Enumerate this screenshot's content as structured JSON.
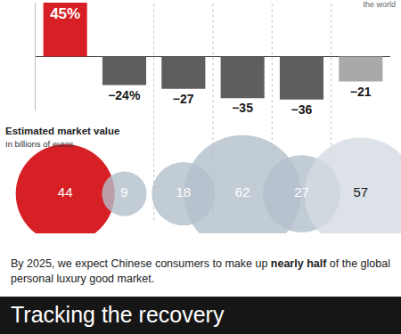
{
  "chart_data": [
    {
      "type": "bar",
      "categories": [
        null,
        null,
        null,
        null,
        null,
        null
      ],
      "values": [
        45,
        -24,
        -27,
        -35,
        -36,
        -21
      ],
      "value_labels": [
        "45%",
        "−24%",
        "−27",
        "−35",
        "−36",
        "−21"
      ],
      "colors": [
        "#d71f26",
        "#5e5e5e",
        "#5e5e5e",
        "#5e5e5e",
        "#5e5e5e",
        "#a9a9a9"
      ],
      "ylim": [
        -45,
        45
      ],
      "data_labels": true,
      "tick_labels": false
    },
    {
      "type": "bubble",
      "title": "Estimated market value",
      "subtitle": "In billions of euros",
      "categories": [
        null,
        null,
        null,
        null,
        null,
        null
      ],
      "values": [
        44,
        9,
        18,
        62,
        27,
        57
      ],
      "colors": [
        "#d71f26",
        "#b3bfcb",
        "#b3bfcb",
        "#b3bfcb",
        "#b3bfcb",
        "#d5dbe2"
      ],
      "data_labels": true,
      "tick_labels": false
    }
  ],
  "corner_note": "the world",
  "note": [
    {
      "text": "By 2025, we expect Chinese consumers to make up ",
      "bold": false
    },
    {
      "text": "nearly half",
      "bold": true
    },
    {
      "text": " of the global personal luxury good market.",
      "bold": false
    }
  ],
  "banner": "Tracking the recovery"
}
